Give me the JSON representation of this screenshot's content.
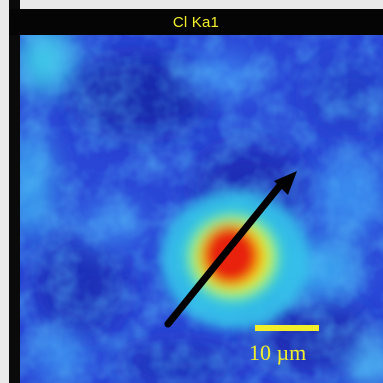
{
  "panel": {
    "title": "Cl Ka1",
    "scale_bar_label": "10 µm"
  },
  "colors": {
    "title_text": "#f2ee2a",
    "scale_bar": "#f2ee2a",
    "arrow": "#000000",
    "map_low": "#1a2fc0",
    "map_mid": "#2ec3e8",
    "map_high": "#e21a0a"
  },
  "icons": {
    "arrow": "diagonal-arrow"
  }
}
